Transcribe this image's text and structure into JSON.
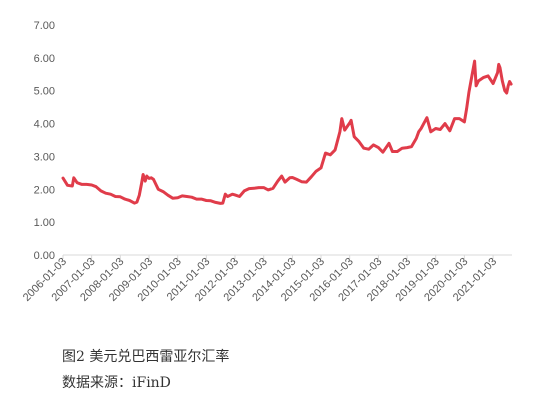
{
  "caption": {
    "title": "图2 美元兑巴西雷亚尔汇率",
    "source": "数据来源：iFinD"
  },
  "colors": {
    "series": "#E03C4A",
    "axis": "#D9D9D9",
    "text": "#595959"
  },
  "chart_data": {
    "type": "line",
    "title": "",
    "xlabel": "",
    "ylabel": "",
    "ylim": [
      0,
      7
    ],
    "y_ticks": [
      "0.00",
      "1.00",
      "2.00",
      "3.00",
      "4.00",
      "5.00",
      "6.00",
      "7.00"
    ],
    "x_tick_labels": [
      "2006-01-03",
      "2007-01-03",
      "2008-01-03",
      "2009-01-03",
      "2010-01-03",
      "2011-01-03",
      "2012-01-03",
      "2013-01-03",
      "2014-01-03",
      "2015-01-03",
      "2016-01-03",
      "2017-01-03",
      "2018-01-03",
      "2019-01-03",
      "2020-01-03",
      "2021-01-03"
    ],
    "grid": false,
    "legend": "none",
    "series": [
      {
        "x": [
          "2006-01-03",
          "2006-03-01",
          "2006-05-01",
          "2006-05-20",
          "2006-07-01",
          "2006-09-01",
          "2006-11-01",
          "2007-01-03",
          "2007-03-01",
          "2007-05-01",
          "2007-07-01",
          "2007-09-01",
          "2007-11-01",
          "2008-01-03",
          "2008-03-01",
          "2008-05-01",
          "2008-07-01",
          "2008-08-01",
          "2008-09-01",
          "2008-10-01",
          "2008-10-20",
          "2008-11-15",
          "2008-12-05",
          "2009-01-03",
          "2009-02-01",
          "2009-03-01",
          "2009-04-01",
          "2009-05-01",
          "2009-07-01",
          "2009-09-01",
          "2009-11-01",
          "2010-01-03",
          "2010-03-01",
          "2010-05-01",
          "2010-07-01",
          "2010-09-01",
          "2010-11-01",
          "2011-01-03",
          "2011-03-01",
          "2011-05-01",
          "2011-07-01",
          "2011-08-01",
          "2011-09-01",
          "2011-10-01",
          "2011-12-01",
          "2012-01-03",
          "2012-03-01",
          "2012-05-01",
          "2012-07-01",
          "2012-09-01",
          "2012-11-01",
          "2013-01-03",
          "2013-03-01",
          "2013-05-01",
          "2013-07-01",
          "2013-08-20",
          "2013-10-01",
          "2013-12-01",
          "2014-01-03",
          "2014-03-01",
          "2014-05-01",
          "2014-07-01",
          "2014-09-01",
          "2014-11-01",
          "2015-01-03",
          "2015-03-01",
          "2015-05-01",
          "2015-07-01",
          "2015-09-01",
          "2015-09-25",
          "2015-11-01",
          "2016-01-03",
          "2016-01-21",
          "2016-03-01",
          "2016-05-01",
          "2016-07-01",
          "2016-09-01",
          "2016-11-01",
          "2017-01-03",
          "2017-03-01",
          "2017-05-18",
          "2017-07-01",
          "2017-09-01",
          "2017-11-01",
          "2018-01-03",
          "2018-03-01",
          "2018-05-01",
          "2018-06-01",
          "2018-07-01",
          "2018-09-13",
          "2018-11-01",
          "2019-01-03",
          "2019-03-01",
          "2019-05-01",
          "2019-07-01",
          "2019-09-01",
          "2019-11-01",
          "2020-01-03",
          "2020-02-01",
          "2020-03-01",
          "2020-04-01",
          "2020-05-13",
          "2020-06-01",
          "2020-07-01",
          "2020-09-01",
          "2020-11-01",
          "2021-01-03",
          "2021-03-01",
          "2021-03-15",
          "2021-04-01",
          "2021-05-01",
          "2021-06-01",
          "2021-06-25",
          "2021-07-15",
          "2021-08-01",
          "2021-08-20"
        ],
        "y": [
          2.34,
          2.12,
          2.1,
          2.35,
          2.2,
          2.15,
          2.15,
          2.13,
          2.08,
          1.95,
          1.88,
          1.85,
          1.78,
          1.77,
          1.7,
          1.66,
          1.58,
          1.61,
          1.82,
          2.2,
          2.45,
          2.25,
          2.4,
          2.33,
          2.35,
          2.3,
          2.15,
          2.0,
          1.93,
          1.82,
          1.73,
          1.74,
          1.8,
          1.78,
          1.76,
          1.7,
          1.7,
          1.66,
          1.65,
          1.6,
          1.57,
          1.58,
          1.85,
          1.78,
          1.85,
          1.83,
          1.78,
          1.95,
          2.02,
          2.03,
          2.05,
          2.05,
          1.98,
          2.03,
          2.25,
          2.4,
          2.22,
          2.35,
          2.36,
          2.3,
          2.23,
          2.22,
          2.38,
          2.55,
          2.65,
          3.1,
          3.05,
          3.2,
          3.75,
          4.15,
          3.8,
          4.02,
          4.1,
          3.6,
          3.45,
          3.25,
          3.22,
          3.35,
          3.27,
          3.13,
          3.4,
          3.15,
          3.15,
          3.25,
          3.27,
          3.3,
          3.55,
          3.75,
          3.85,
          4.18,
          3.75,
          3.85,
          3.82,
          4.0,
          3.78,
          4.15,
          4.15,
          4.05,
          4.45,
          4.95,
          5.35,
          5.9,
          5.15,
          5.3,
          5.4,
          5.45,
          5.22,
          5.55,
          5.8,
          5.7,
          5.3,
          5.0,
          4.93,
          5.15,
          5.28,
          5.2
        ]
      }
    ]
  }
}
